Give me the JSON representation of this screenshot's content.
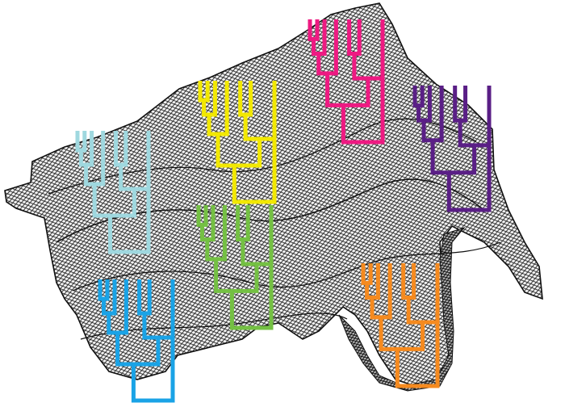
{
  "figure": {
    "background": "#ffffff",
    "surface": {
      "stroke_color": "#1a1a1a",
      "fill_color": "#cfcfcf"
    },
    "trees": [
      {
        "id": "light-blue",
        "color": "#9fd8df"
      },
      {
        "id": "yellow",
        "color": "#f2e800"
      },
      {
        "id": "pink",
        "color": "#ee1a82"
      },
      {
        "id": "purple",
        "color": "#5a1f86"
      },
      {
        "id": "green",
        "color": "#74c043"
      },
      {
        "id": "blue",
        "color": "#1aa3e6"
      },
      {
        "id": "orange",
        "color": "#f58a1f"
      }
    ]
  }
}
